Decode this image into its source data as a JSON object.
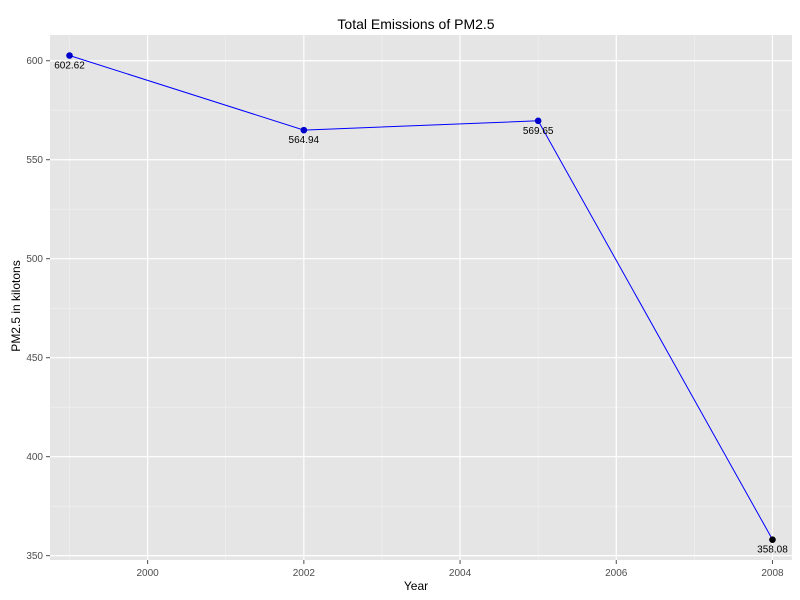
{
  "chart_data": {
    "type": "line",
    "title": "Total Emissions of PM2.5",
    "xlabel": "Year",
    "ylabel": "PM2.5 in kilotons",
    "xlim": [
      1998.75,
      2008.25
    ],
    "ylim": [
      347.8,
      613.0
    ],
    "x_ticks": [
      2000,
      2002,
      2004,
      2006,
      2008
    ],
    "y_ticks": [
      350,
      400,
      450,
      500,
      550,
      600
    ],
    "grid": true,
    "series": [
      {
        "x": [
          1999,
          2002,
          2005,
          2008
        ],
        "y": [
          602.62,
          564.94,
          569.65,
          358.08
        ],
        "labels": [
          "602.62",
          "564.94",
          "569.65",
          "358.08"
        ],
        "point_colors": [
          "#0000cc",
          "#0000cc",
          "#0000cc",
          "#000000"
        ],
        "line_color": "#0000ff"
      }
    ]
  },
  "colors": {
    "panel_background": "#e5e5e5",
    "grid_major": "#ffffff",
    "grid_minor": "#f2f2f2"
  }
}
